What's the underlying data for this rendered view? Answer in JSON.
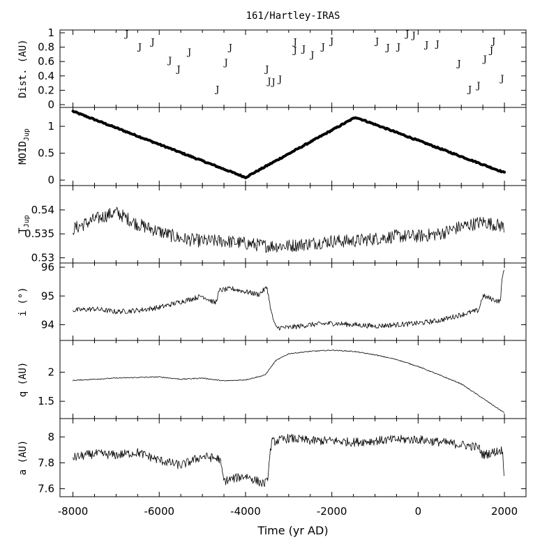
{
  "chart_data": {
    "type": "line",
    "title": "161/Hartley-IRAS",
    "xlabel": "Time (yr AD)",
    "xlim": [
      -8300,
      2500
    ],
    "xticks": [
      -8000,
      -6000,
      -4000,
      -2000,
      0,
      2000
    ],
    "xtick_labels": [
      "-8000",
      "-6000",
      "-4000",
      "-2000",
      "0",
      "2000"
    ],
    "panels": [
      {
        "id": "dist",
        "ylabel": "Dist. (AU)",
        "ylim": [
          0,
          1.0
        ],
        "yticks": [
          0,
          0.2,
          0.4,
          0.6,
          0.8,
          1
        ],
        "ytick_labels": [
          "0",
          "0.2",
          "0.4",
          "0.6",
          "0.8",
          "1"
        ],
        "style": "markers",
        "marker": "J",
        "x": [
          -6750,
          -6450,
          -6150,
          -5750,
          -5550,
          -5300,
          -4650,
          -4450,
          -4350,
          -3500,
          -3450,
          -3350,
          -3200,
          -2850,
          -2850,
          -2650,
          -2450,
          -2200,
          -2000,
          -950,
          -700,
          -450,
          -250,
          -100,
          200,
          450,
          950,
          1200,
          1400,
          1550,
          1700,
          1750,
          1950
        ],
        "y": [
          0.99,
          0.81,
          0.88,
          0.62,
          0.5,
          0.74,
          0.22,
          0.59,
          0.8,
          0.5,
          0.33,
          0.32,
          0.36,
          0.88,
          0.76,
          0.78,
          0.7,
          0.81,
          0.89,
          0.89,
          0.8,
          0.81,
          0.99,
          0.97,
          0.84,
          0.85,
          0.58,
          0.22,
          0.27,
          0.64,
          0.76,
          0.89,
          0.37
        ]
      },
      {
        "id": "moid",
        "ylabel": "MOID",
        "ylabel_sub": "Jup",
        "ylim": [
          -0.05,
          1.3
        ],
        "yticks": [
          0,
          0.5,
          1
        ],
        "ytick_labels": [
          "0",
          "0.5",
          "1"
        ],
        "style": "thick",
        "x": [
          -8000,
          -4000,
          -1450,
          2000
        ],
        "y": [
          1.28,
          0.05,
          1.17,
          0.14
        ]
      },
      {
        "id": "tjup",
        "ylabel": "T",
        "ylabel_sub": "Jup",
        "ylim": [
          0.5295,
          0.5445
        ],
        "yticks": [
          0.53,
          0.535,
          0.54
        ],
        "ytick_labels": [
          "0.53",
          "0.535",
          "0.54"
        ],
        "style": "thin",
        "x": [
          -8000,
          -7500,
          -7000,
          -6500,
          -6000,
          -5500,
          -5000,
          -4500,
          -4000,
          -3500,
          -3000,
          -2500,
          -2000,
          -1500,
          -1000,
          -500,
          0,
          500,
          1000,
          1500,
          2000
        ],
        "y": [
          0.536,
          0.538,
          0.5395,
          0.537,
          0.5355,
          0.534,
          0.5335,
          0.5335,
          0.533,
          0.5325,
          0.5325,
          0.533,
          0.5335,
          0.5335,
          0.534,
          0.5345,
          0.5345,
          0.535,
          0.5365,
          0.5375,
          0.5365
        ]
      },
      {
        "id": "incl",
        "ylabel": "i (°)",
        "ylim": [
          93.55,
          96.05
        ],
        "yticks": [
          94,
          95,
          96
        ],
        "ytick_labels": [
          "94",
          "95",
          "96"
        ],
        "style": "thin",
        "x": [
          -8000,
          -7500,
          -7000,
          -6500,
          -6000,
          -5500,
          -5000,
          -4700,
          -4600,
          -4300,
          -4000,
          -3700,
          -3500,
          -3400,
          -3300,
          -3000,
          -2500,
          -2000,
          -1500,
          -1000,
          -500,
          0,
          500,
          1000,
          1400,
          1500,
          1900,
          1950,
          2000
        ],
        "y": [
          94.5,
          94.55,
          94.45,
          94.5,
          94.6,
          94.8,
          95.0,
          94.75,
          95.2,
          95.25,
          95.15,
          95.05,
          95.3,
          94.4,
          93.9,
          93.9,
          94.0,
          94.05,
          94.0,
          93.95,
          94.0,
          94.05,
          94.15,
          94.35,
          94.5,
          95.0,
          94.8,
          95.6,
          96.0
        ]
      },
      {
        "id": "q",
        "ylabel": "q (AU)",
        "ylim": [
          1.25,
          2.5
        ],
        "yticks": [
          1.5,
          2
        ],
        "ytick_labels": [
          "1.5",
          "2"
        ],
        "style": "thin",
        "x": [
          -8000,
          -7000,
          -6000,
          -5500,
          -5000,
          -4500,
          -4000,
          -3550,
          -3300,
          -3000,
          -2500,
          -2000,
          -1500,
          -1000,
          -500,
          0,
          500,
          1000,
          1500,
          2000
        ],
        "y": [
          1.86,
          1.9,
          1.92,
          1.88,
          1.9,
          1.85,
          1.87,
          1.95,
          2.2,
          2.32,
          2.36,
          2.38,
          2.36,
          2.3,
          2.22,
          2.1,
          1.95,
          1.8,
          1.55,
          1.3
        ]
      },
      {
        "id": "a",
        "ylabel": "a (AU)",
        "ylim": [
          7.56,
          8.12
        ],
        "yticks": [
          7.6,
          7.8,
          8
        ],
        "ytick_labels": [
          "7.6",
          "7.8",
          "8"
        ],
        "style": "thin",
        "x": [
          -8000,
          -7500,
          -7000,
          -6500,
          -6000,
          -5500,
          -5000,
          -4600,
          -4500,
          -4000,
          -3600,
          -3500,
          -3400,
          -3000,
          -2500,
          -2000,
          -1500,
          -1000,
          -500,
          0,
          500,
          1000,
          1400,
          1500,
          1950,
          2000
        ],
        "y": [
          7.84,
          7.87,
          7.86,
          7.88,
          7.82,
          7.78,
          7.85,
          7.83,
          7.66,
          7.7,
          7.64,
          7.65,
          7.96,
          7.99,
          7.97,
          7.97,
          7.96,
          7.97,
          7.98,
          7.98,
          7.96,
          7.94,
          7.92,
          7.86,
          7.9,
          7.69
        ]
      }
    ]
  }
}
